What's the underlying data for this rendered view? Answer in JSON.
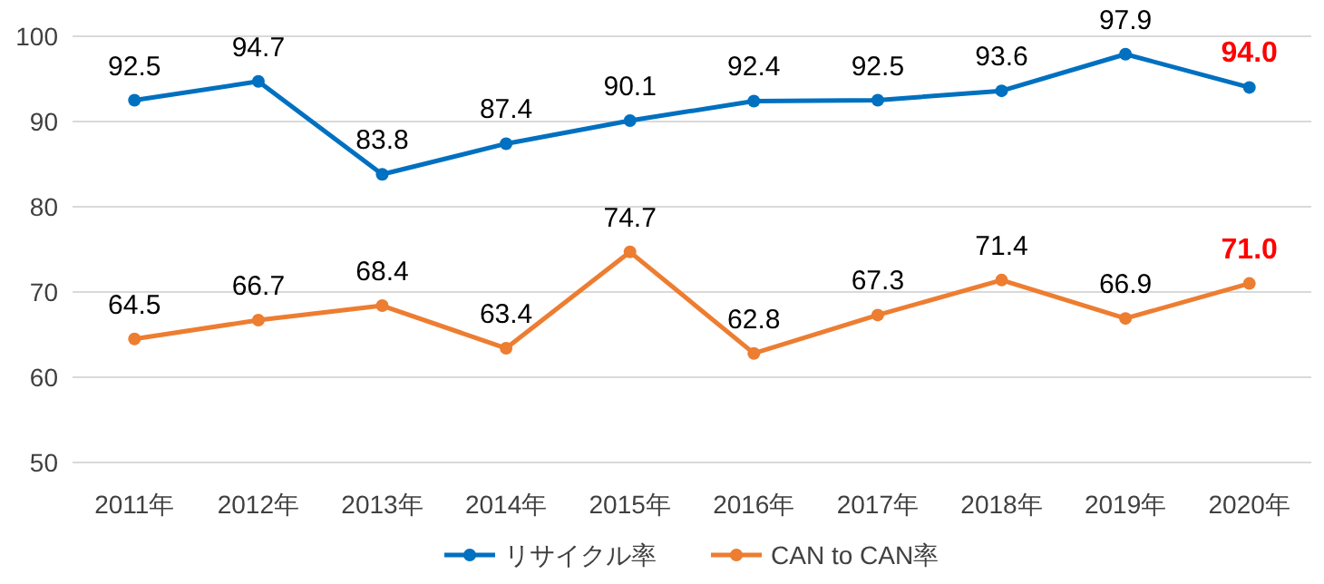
{
  "chart_data": {
    "type": "line",
    "categories": [
      "2011年",
      "2012年",
      "2013年",
      "2014年",
      "2015年",
      "2016年",
      "2017年",
      "2018年",
      "2019年",
      "2020年"
    ],
    "series": [
      {
        "name": "リサイクル率",
        "color": "#0070c0",
        "values": [
          92.5,
          94.7,
          83.8,
          87.4,
          90.1,
          92.4,
          92.5,
          93.6,
          97.9,
          94.0
        ],
        "value_labels": [
          "92.5",
          "94.7",
          "83.8",
          "87.4",
          "90.1",
          "92.4",
          "92.5",
          "93.6",
          "97.9",
          "94.0"
        ]
      },
      {
        "name": "CAN to CAN率",
        "color": "#ed7d31",
        "values": [
          64.5,
          66.7,
          68.4,
          63.4,
          74.7,
          62.8,
          67.3,
          71.4,
          66.9,
          71.0
        ],
        "value_labels": [
          "64.5",
          "66.7",
          "68.4",
          "63.4",
          "74.7",
          "62.8",
          "67.3",
          "71.4",
          "66.9",
          "71.0"
        ]
      }
    ],
    "ylim": [
      50,
      100
    ],
    "yticks": [
      50,
      60,
      70,
      80,
      90,
      100
    ],
    "grid": "y",
    "legend": "bottom",
    "marker": "circle",
    "line_style": "solid"
  }
}
